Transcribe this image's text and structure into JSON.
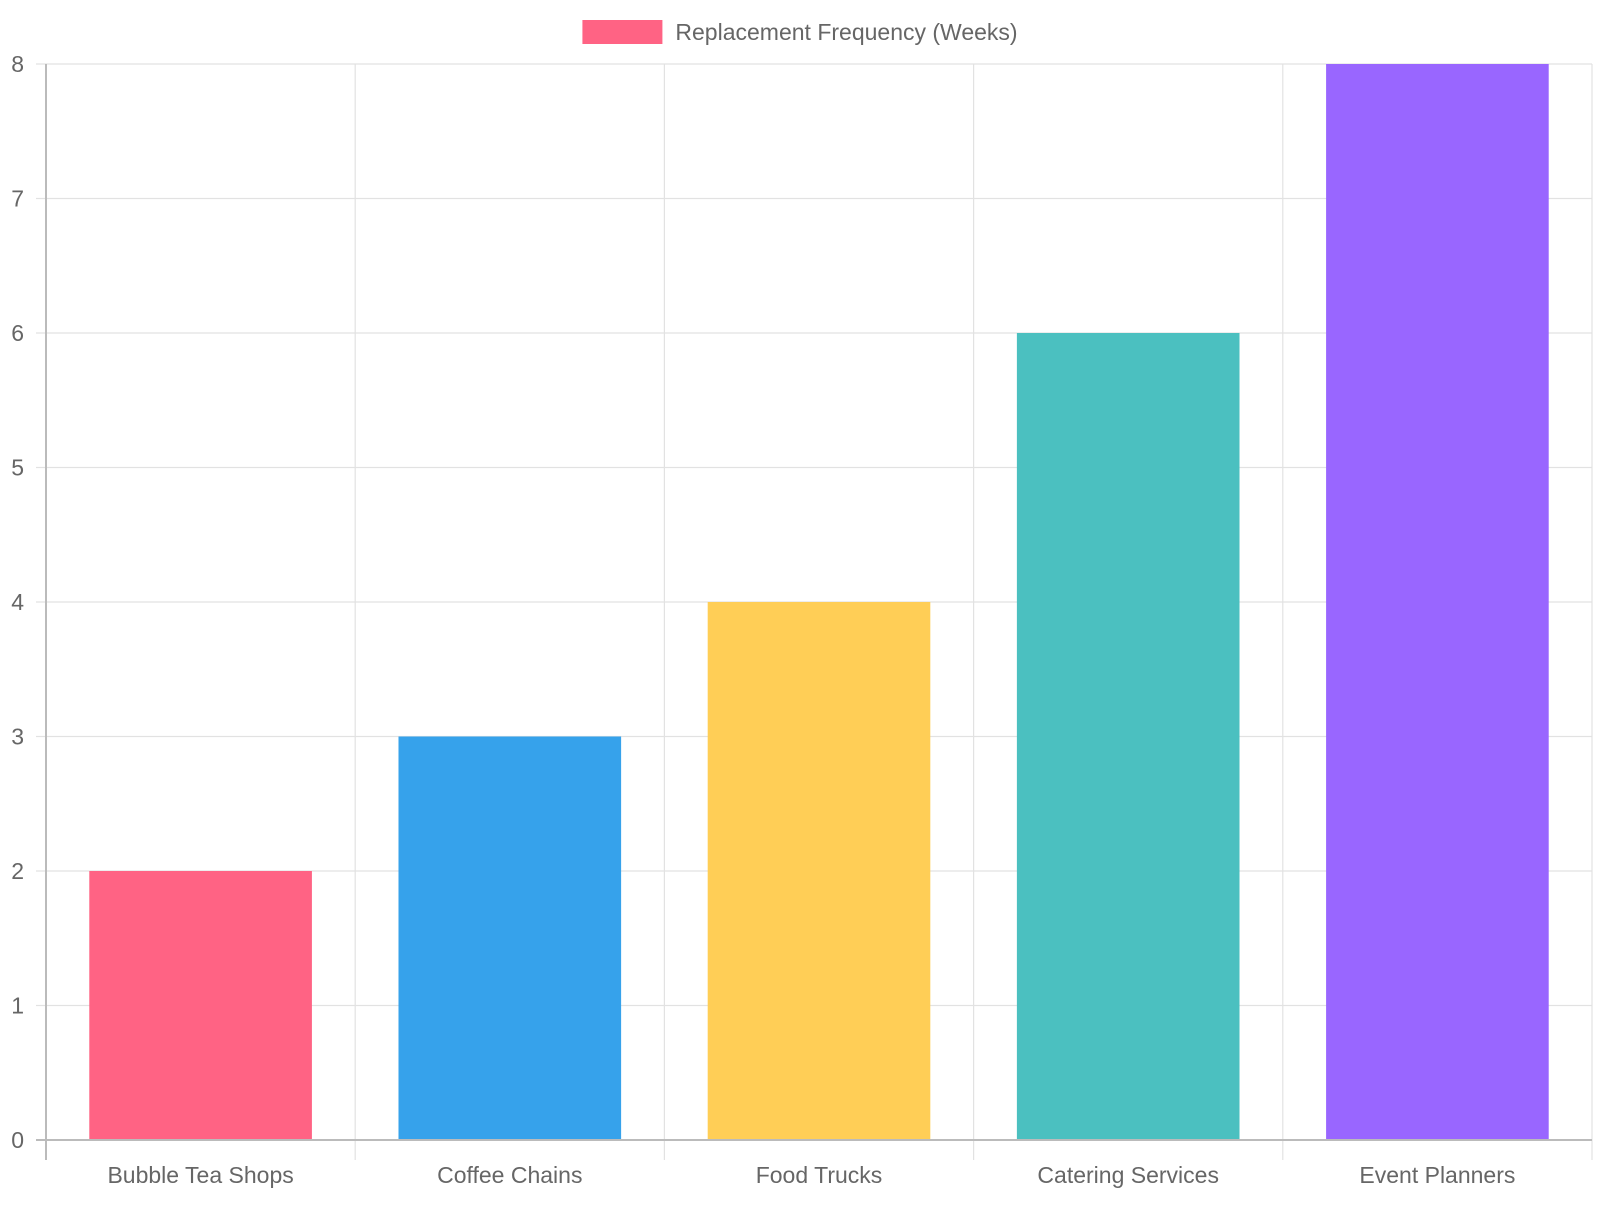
{
  "chart_data": {
    "type": "bar",
    "categories": [
      "Bubble Tea Shops",
      "Coffee Chains",
      "Food Trucks",
      "Catering Services",
      "Event Planners"
    ],
    "series": [
      {
        "name": "Replacement Frequency (Weeks)",
        "values": [
          2,
          3,
          4,
          6,
          8
        ]
      }
    ],
    "colors": [
      "#ff6384",
      "#36a2eb",
      "#ffce56",
      "#4bc0c0",
      "#9966ff"
    ],
    "legend_color": "#ff6384",
    "ylim": [
      0,
      8
    ],
    "yticks": [
      0,
      1,
      2,
      3,
      4,
      5,
      6,
      7,
      8
    ],
    "legend_position": "top",
    "grid": true
  }
}
